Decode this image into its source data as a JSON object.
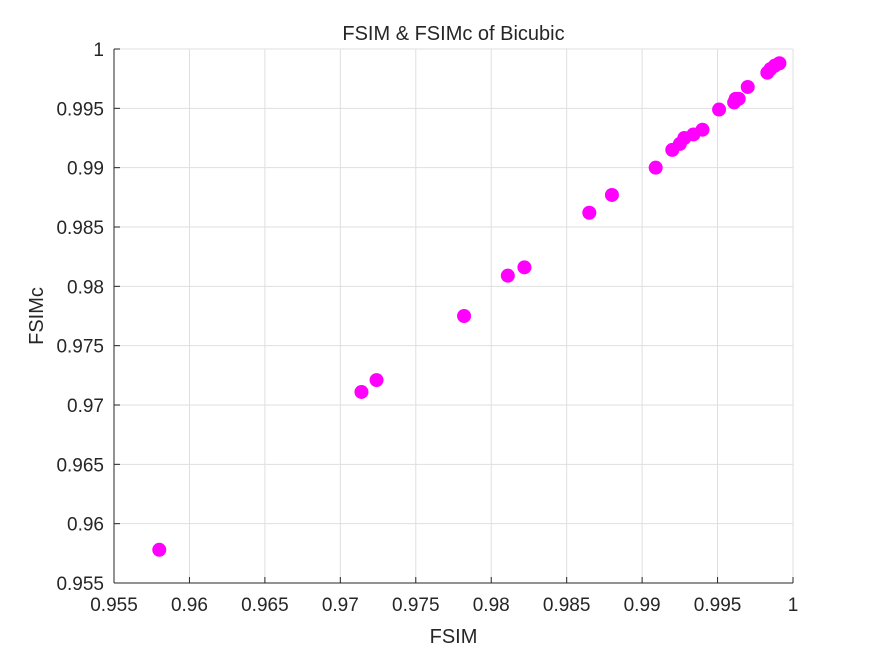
{
  "chart_data": {
    "type": "scatter",
    "title": "FSIM & FSIMc of Bicubic",
    "xlabel": "FSIM",
    "ylabel": "FSIMc",
    "xlim": [
      0.955,
      1
    ],
    "ylim": [
      0.955,
      1
    ],
    "xticks": [
      "0.955",
      "0.96",
      "0.965",
      "0.97",
      "0.975",
      "0.98",
      "0.985",
      "0.99",
      "0.995",
      "1"
    ],
    "yticks": [
      "0.955",
      "0.96",
      "0.965",
      "0.97",
      "0.975",
      "0.98",
      "0.985",
      "0.99",
      "0.995",
      "1"
    ],
    "grid": true,
    "marker_color": "#ff00ff",
    "series": [
      {
        "points": [
          [
            0.958,
            0.9578
          ],
          [
            0.9714,
            0.9711
          ],
          [
            0.9724,
            0.9721
          ],
          [
            0.9782,
            0.9775
          ],
          [
            0.9811,
            0.9809
          ],
          [
            0.9822,
            0.9816
          ],
          [
            0.9865,
            0.9862
          ],
          [
            0.988,
            0.9877
          ],
          [
            0.9909,
            0.99
          ],
          [
            0.992,
            0.9915
          ],
          [
            0.9925,
            0.992
          ],
          [
            0.9928,
            0.9925
          ],
          [
            0.9934,
            0.9928
          ],
          [
            0.994,
            0.9932
          ],
          [
            0.9951,
            0.9949
          ],
          [
            0.9961,
            0.9955
          ],
          [
            0.9962,
            0.9958
          ],
          [
            0.9964,
            0.9958
          ],
          [
            0.997,
            0.9968
          ],
          [
            0.9983,
            0.998
          ],
          [
            0.9985,
            0.9983
          ],
          [
            0.9988,
            0.9986
          ],
          [
            0.9991,
            0.9988
          ]
        ]
      }
    ]
  }
}
